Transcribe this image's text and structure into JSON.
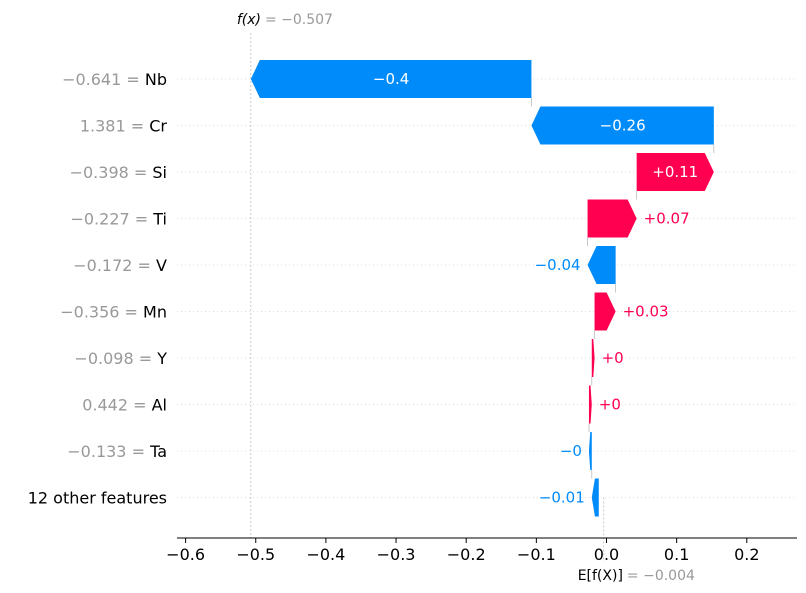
{
  "chart_data": {
    "type": "waterfall",
    "title": "",
    "xlabel": "",
    "ylabel": "",
    "xlim": [
      -0.62,
      0.27
    ],
    "x_ticks": [
      -0.6,
      -0.5,
      -0.4,
      -0.3,
      -0.2,
      -0.1,
      0.0,
      0.1,
      0.2
    ],
    "x_tick_labels": [
      "−0.6",
      "−0.5",
      "−0.4",
      "−0.3",
      "−0.2",
      "−0.1",
      "0.0",
      "0.1",
      "0.2"
    ],
    "base_value": -0.004,
    "output_value": -0.507,
    "fx_label": "f(x)",
    "fx_value_text": "= −0.507",
    "efx_label": "E[f(X)]",
    "efx_value_text": "= −0.004",
    "grid": false,
    "colors": {
      "positive": "#ff0051",
      "negative": "#008bfb",
      "feature_value": "#999999",
      "text": "#000000"
    },
    "features": [
      {
        "value_text": "−0.641",
        "name": "Nb",
        "shap": -0.4,
        "label": "−0.4"
      },
      {
        "value_text": "1.381",
        "name": "Cr",
        "shap": -0.26,
        "label": "−0.26"
      },
      {
        "value_text": "−0.398",
        "name": "Si",
        "shap": 0.11,
        "label": "+0.11"
      },
      {
        "value_text": "−0.227",
        "name": "Ti",
        "shap": 0.07,
        "label": "+0.07"
      },
      {
        "value_text": "−0.172",
        "name": "V",
        "shap": -0.04,
        "label": "−0.04"
      },
      {
        "value_text": "−0.356",
        "name": "Mn",
        "shap": 0.03,
        "label": "+0.03"
      },
      {
        "value_text": "−0.098",
        "name": "Y",
        "shap": 0.004,
        "label": "+0"
      },
      {
        "value_text": "0.442",
        "name": "Al",
        "shap": 0.004,
        "label": "+0"
      },
      {
        "value_text": "−0.133",
        "name": "Ta",
        "shap": -0.004,
        "label": "−0"
      },
      {
        "value_text": "",
        "name": "12 other features",
        "shap": -0.01,
        "label": "−0.01"
      }
    ]
  }
}
